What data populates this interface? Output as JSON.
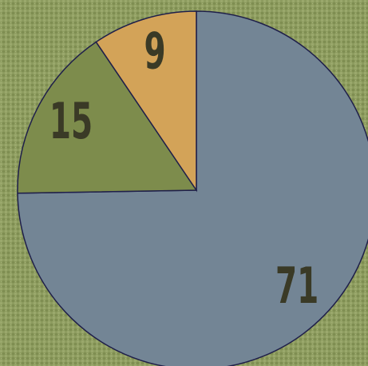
{
  "chart_data": {
    "type": "pie",
    "categories": [
      "71",
      "15",
      "9"
    ],
    "values": [
      71,
      15,
      9
    ],
    "colors": [
      "#738595",
      "#7d8c4c",
      "#d3a358"
    ]
  }
}
